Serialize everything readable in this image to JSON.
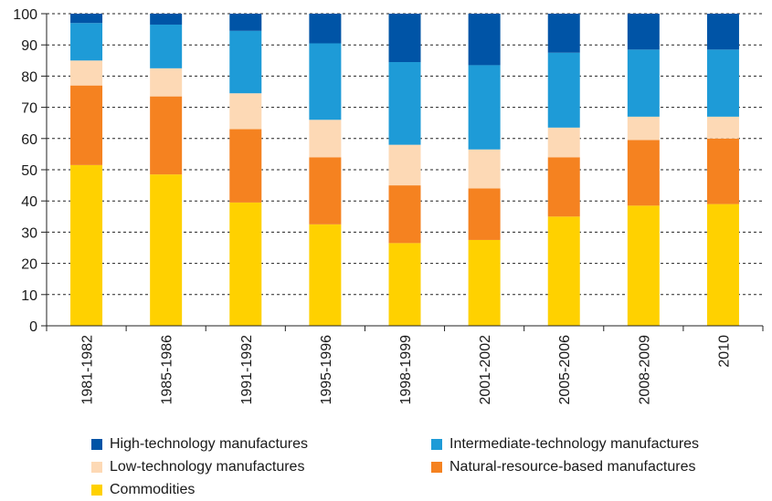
{
  "chart_data": {
    "type": "bar",
    "stacked": true,
    "categories": [
      "1981-1982",
      "1985-1986",
      "1991-1992",
      "1995-1996",
      "1998-1999",
      "2001-2002",
      "2005-2006",
      "2008-2009",
      "2010"
    ],
    "series": [
      {
        "name": "Commodities",
        "color": "#FFD100",
        "values": [
          51.5,
          48.5,
          39.5,
          32.5,
          26.5,
          27.5,
          35,
          38.5,
          39
        ]
      },
      {
        "name": "Natural-resource-based manufactures",
        "color": "#F58220",
        "values": [
          25.5,
          25,
          23.5,
          21.5,
          18.5,
          16.5,
          19,
          21,
          21
        ]
      },
      {
        "name": "Low-technology manufactures",
        "color": "#FDD9B5",
        "values": [
          8,
          9,
          11.5,
          12,
          13,
          12.5,
          9.5,
          7.5,
          7
        ]
      },
      {
        "name": "Intermediate-technology manufactures",
        "color": "#1E9BD7",
        "values": [
          12,
          14,
          20,
          24.5,
          26.5,
          27,
          24,
          21.5,
          21.5
        ]
      },
      {
        "name": "High-technology manufactures",
        "color": "#0054A6",
        "values": [
          3,
          3.5,
          5.5,
          9.5,
          15.5,
          16.5,
          12.5,
          11.5,
          11.5
        ]
      }
    ],
    "ylim": [
      0,
      100
    ],
    "yticks": [
      "0",
      "10",
      "20",
      "30",
      "40",
      "50",
      "60",
      "70",
      "80",
      "90",
      "100"
    ],
    "grid": true,
    "legend_position": "bottom",
    "title": "",
    "xlabel": "",
    "ylabel": ""
  },
  "legend": {
    "items": [
      {
        "label": "High-technology manufactures",
        "color": "#0054A6"
      },
      {
        "label": "Intermediate-technology manufactures",
        "color": "#1E9BD7"
      },
      {
        "label": "Low-technology manufactures",
        "color": "#FDD9B5"
      },
      {
        "label": "Natural-resource-based manufactures",
        "color": "#F58220"
      },
      {
        "label": "Commodities",
        "color": "#FFD100"
      }
    ]
  }
}
